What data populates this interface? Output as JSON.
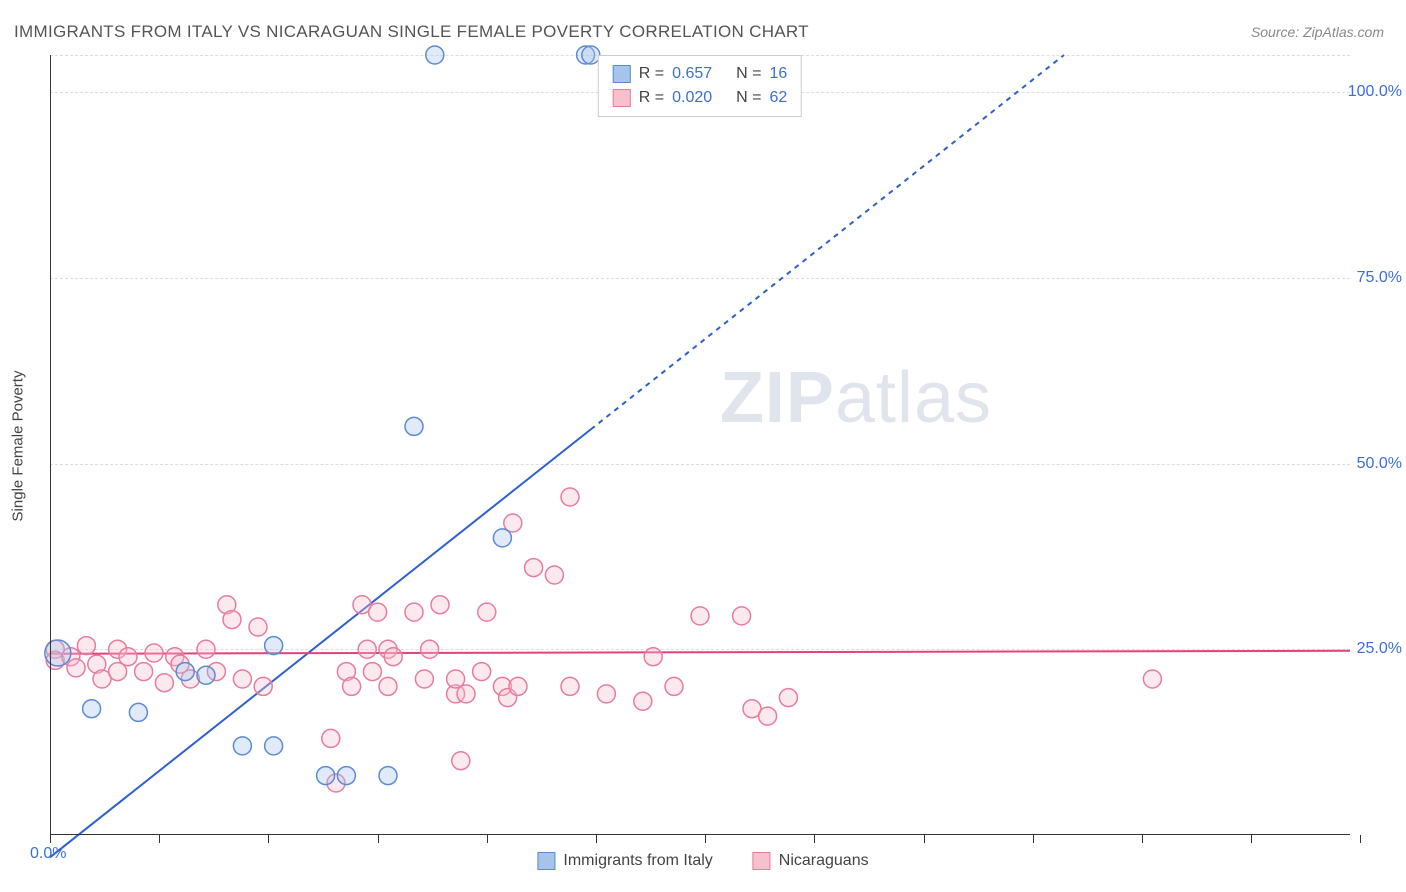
{
  "title": "IMMIGRANTS FROM ITALY VS NICARAGUAN SINGLE FEMALE POVERTY CORRELATION CHART",
  "source": "Source: ZipAtlas.com",
  "ylabel": "Single Female Poverty",
  "watermark_a": "ZIP",
  "watermark_b": "atlas",
  "chart": {
    "type": "scatter",
    "background_color": "#ffffff",
    "grid_color": "#dddddd",
    "xlim": [
      0,
      25
    ],
    "ylim": [
      0,
      105
    ],
    "x_ticks": [
      0,
      2.1,
      4.2,
      6.3,
      8.4,
      10.5,
      12.6,
      14.7,
      16.8,
      18.9,
      21.0,
      23.1,
      25.2
    ],
    "y_ticks": [
      {
        "v": 25,
        "label": "25.0%",
        "color": "#3b6fd6"
      },
      {
        "v": 50,
        "label": "50.0%",
        "color": "#3b6fd6"
      },
      {
        "v": 75,
        "label": "75.0%",
        "color": "#3b6fd6"
      },
      {
        "v": 100,
        "label": "100.0%",
        "color": "#3b6fd6"
      }
    ],
    "origin_label": "0.0%",
    "origin_color": "#3b6fd6",
    "marker_radius": 9,
    "marker_big_radius": 13,
    "series": [
      {
        "name": "Immigrants from Italy",
        "key": "italy",
        "fill": "#a6c4ea",
        "stroke": "#5b8bd4",
        "r": 0.657,
        "n": 16,
        "trend": {
          "x1": 0,
          "y1": -3,
          "x2": 19.5,
          "y2": 105,
          "solid_until_x": 10.4,
          "color": "#2d5fd0",
          "width": 2
        },
        "points": [
          {
            "x": 0.15,
            "y": 24.5,
            "size": "big"
          },
          {
            "x": 0.8,
            "y": 17
          },
          {
            "x": 1.7,
            "y": 16.5
          },
          {
            "x": 2.6,
            "y": 22
          },
          {
            "x": 3.0,
            "y": 21.5
          },
          {
            "x": 3.7,
            "y": 12
          },
          {
            "x": 4.3,
            "y": 25.5
          },
          {
            "x": 4.3,
            "y": 12
          },
          {
            "x": 5.3,
            "y": 8
          },
          {
            "x": 5.7,
            "y": 8
          },
          {
            "x": 6.5,
            "y": 8
          },
          {
            "x": 7.0,
            "y": 55
          },
          {
            "x": 7.4,
            "y": 105
          },
          {
            "x": 8.7,
            "y": 40
          },
          {
            "x": 10.3,
            "y": 105
          },
          {
            "x": 10.4,
            "y": 105
          }
        ]
      },
      {
        "name": "Nicaraguans",
        "key": "nicaragua",
        "fill": "#f6c0cd",
        "stroke": "#e97ba0",
        "r": 0.02,
        "n": 62,
        "trend": {
          "x1": 0,
          "y1": 24.4,
          "x2": 25,
          "y2": 24.8,
          "solid_until_x": 25,
          "color": "#e6417a",
          "width": 2
        },
        "points": [
          {
            "x": 0.1,
            "y": 25
          },
          {
            "x": 0.1,
            "y": 23.5
          },
          {
            "x": 0.4,
            "y": 24
          },
          {
            "x": 0.5,
            "y": 22.5
          },
          {
            "x": 0.7,
            "y": 25.5
          },
          {
            "x": 0.9,
            "y": 23
          },
          {
            "x": 1.0,
            "y": 21
          },
          {
            "x": 1.3,
            "y": 25
          },
          {
            "x": 1.3,
            "y": 22
          },
          {
            "x": 1.5,
            "y": 24
          },
          {
            "x": 1.8,
            "y": 22
          },
          {
            "x": 2.0,
            "y": 24.5
          },
          {
            "x": 2.2,
            "y": 20.5
          },
          {
            "x": 2.4,
            "y": 24
          },
          {
            "x": 2.5,
            "y": 23
          },
          {
            "x": 2.7,
            "y": 21
          },
          {
            "x": 3.0,
            "y": 25
          },
          {
            "x": 3.2,
            "y": 22
          },
          {
            "x": 3.4,
            "y": 31
          },
          {
            "x": 3.5,
            "y": 29
          },
          {
            "x": 3.7,
            "y": 21
          },
          {
            "x": 4.0,
            "y": 28
          },
          {
            "x": 4.1,
            "y": 20
          },
          {
            "x": 5.4,
            "y": 13
          },
          {
            "x": 5.5,
            "y": 7
          },
          {
            "x": 5.7,
            "y": 22
          },
          {
            "x": 5.8,
            "y": 20
          },
          {
            "x": 6.0,
            "y": 31
          },
          {
            "x": 6.1,
            "y": 25
          },
          {
            "x": 6.2,
            "y": 22
          },
          {
            "x": 6.3,
            "y": 30
          },
          {
            "x": 6.5,
            "y": 20
          },
          {
            "x": 6.5,
            "y": 25
          },
          {
            "x": 6.6,
            "y": 24
          },
          {
            "x": 7.0,
            "y": 30
          },
          {
            "x": 7.2,
            "y": 21
          },
          {
            "x": 7.3,
            "y": 25
          },
          {
            "x": 7.5,
            "y": 31
          },
          {
            "x": 7.8,
            "y": 19
          },
          {
            "x": 7.8,
            "y": 21
          },
          {
            "x": 7.9,
            "y": 10
          },
          {
            "x": 8.0,
            "y": 19
          },
          {
            "x": 8.3,
            "y": 22
          },
          {
            "x": 8.4,
            "y": 30
          },
          {
            "x": 8.7,
            "y": 20
          },
          {
            "x": 8.8,
            "y": 18.5
          },
          {
            "x": 8.9,
            "y": 42
          },
          {
            "x": 9.0,
            "y": 20
          },
          {
            "x": 9.3,
            "y": 36
          },
          {
            "x": 9.7,
            "y": 35
          },
          {
            "x": 10.0,
            "y": 45.5
          },
          {
            "x": 10.0,
            "y": 20
          },
          {
            "x": 10.7,
            "y": 19
          },
          {
            "x": 11.4,
            "y": 18
          },
          {
            "x": 11.6,
            "y": 24
          },
          {
            "x": 12.0,
            "y": 20
          },
          {
            "x": 12.5,
            "y": 29.5
          },
          {
            "x": 13.3,
            "y": 29.5
          },
          {
            "x": 13.5,
            "y": 17
          },
          {
            "x": 13.8,
            "y": 16
          },
          {
            "x": 14.2,
            "y": 18.5
          },
          {
            "x": 21.2,
            "y": 21
          }
        ]
      }
    ],
    "legend_top": {
      "r_label": "R =",
      "n_label": "N =",
      "text_color": "#444444",
      "value_color": "#3b6fd6"
    },
    "legend_bottom_labels": {
      "italy": "Immigrants from Italy",
      "nicaragua": "Nicaraguans"
    },
    "label_fontsize": 15,
    "tick_fontsize": 16
  }
}
